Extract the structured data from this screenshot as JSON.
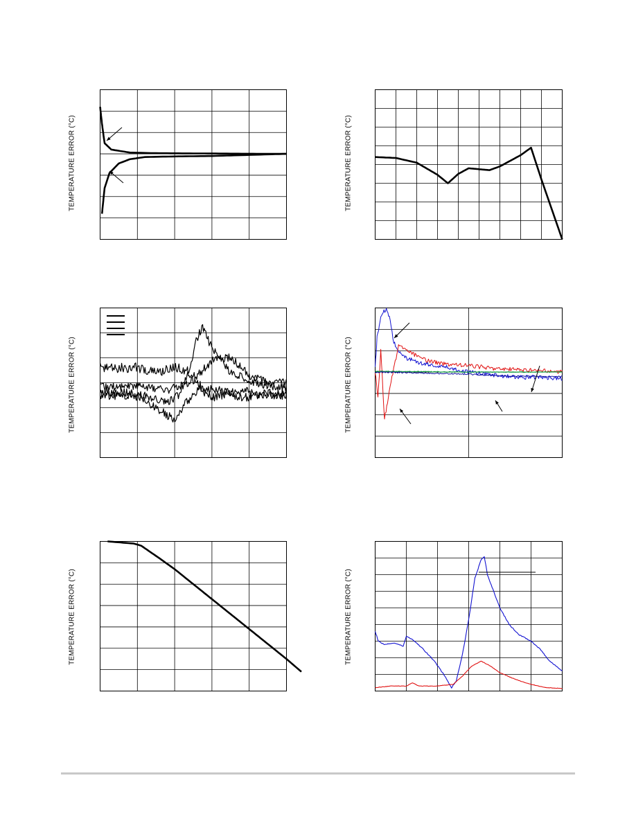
{
  "ylabel_text": "TEMPERATURE ERROR (°C)",
  "colors": {
    "black": "#000000",
    "blue": "#1010d0",
    "red": "#e01010",
    "green": "#10a040",
    "grid": "#000000"
  },
  "chart_data": [
    {
      "type": "line",
      "ylabel": "TEMPERATURE ERROR (°C)",
      "grid": true,
      "xlim": [
        0,
        5
      ],
      "ylim": [
        -4,
        3
      ],
      "x_divisions": 5,
      "y_divisions": 7,
      "series": [
        {
          "values": [
            [
              0,
              2.2
            ],
            [
              0.05,
              1.4
            ],
            [
              0.12,
              0.5
            ],
            [
              0.3,
              0.2
            ],
            [
              0.8,
              0.06
            ],
            [
              1.5,
              0.03
            ],
            [
              2.5,
              0.02
            ],
            [
              3.5,
              0.01
            ],
            [
              4.5,
              0.0
            ],
            [
              5,
              0.0
            ]
          ]
        },
        {
          "values": [
            [
              0.05,
              -2.8
            ],
            [
              0.12,
              -1.6
            ],
            [
              0.25,
              -0.9
            ],
            [
              0.5,
              -0.45
            ],
            [
              0.8,
              -0.25
            ],
            [
              1.2,
              -0.15
            ],
            [
              2,
              -0.12
            ],
            [
              3,
              -0.1
            ],
            [
              4,
              -0.05
            ],
            [
              5,
              0.0
            ]
          ]
        }
      ],
      "annotation_arrows": 2
    },
    {
      "type": "line",
      "ylabel": "TEMPERATURE ERROR (°C)",
      "grid": true,
      "xlim": [
        0,
        9
      ],
      "ylim": [
        -4,
        4
      ],
      "x_divisions": 9,
      "y_divisions": 8,
      "series": [
        {
          "values": [
            [
              0,
              0.4
            ],
            [
              1,
              0.35
            ],
            [
              2,
              0.1
            ],
            [
              3,
              -0.55
            ],
            [
              3.5,
              -1.0
            ],
            [
              4,
              -0.5
            ],
            [
              4.5,
              -0.2
            ],
            [
              5,
              -0.25
            ],
            [
              5.5,
              -0.3
            ],
            [
              6,
              -0.1
            ],
            [
              6.5,
              0.2
            ],
            [
              7,
              0.5
            ],
            [
              7.5,
              0.9
            ],
            [
              8,
              -0.8
            ],
            [
              8.5,
              -2.4
            ],
            [
              9,
              -4.0
            ]
          ]
        }
      ]
    },
    {
      "type": "line",
      "ylabel": "TEMPERATURE ERROR (°C)",
      "grid": true,
      "xlim": [
        0,
        5
      ],
      "ylim": [
        -3,
        3
      ],
      "x_divisions": 5,
      "y_divisions": 6,
      "legend_entries": 4,
      "series": [
        {
          "values": [
            [
              0,
              0.6
            ],
            [
              1,
              0.6
            ],
            [
              1.5,
              0.4
            ],
            [
              2,
              0.6
            ],
            [
              2.3,
              0.5
            ],
            [
              2.5,
              0.3
            ],
            [
              2.8,
              -0.4
            ],
            [
              3,
              -0.6
            ],
            [
              3.4,
              -0.4
            ],
            [
              3.8,
              -0.3
            ],
            [
              4.2,
              -0.5
            ],
            [
              4.6,
              -0.4
            ],
            [
              5,
              -0.4
            ]
          ]
        },
        {
          "values": [
            [
              0,
              -0.4
            ],
            [
              0.8,
              -0.4
            ],
            [
              1.4,
              -0.6
            ],
            [
              1.8,
              -0.8
            ],
            [
              2.1,
              -0.5
            ],
            [
              2.4,
              0.6
            ],
            [
              2.6,
              1.8
            ],
            [
              2.75,
              2.2
            ],
            [
              2.9,
              1.7
            ],
            [
              3.2,
              1.0
            ],
            [
              3.5,
              0.4
            ],
            [
              4,
              0.1
            ],
            [
              4.5,
              -0.1
            ],
            [
              5,
              -0.2
            ]
          ]
        },
        {
          "values": [
            [
              0,
              -0.2
            ],
            [
              1,
              -0.1
            ],
            [
              1.8,
              -0.3
            ],
            [
              2.2,
              -0.1
            ],
            [
              2.5,
              0.1
            ],
            [
              3.0,
              0.9
            ],
            [
              3.5,
              1.0
            ],
            [
              4,
              0.3
            ],
            [
              4.5,
              0.0
            ],
            [
              5,
              0.0
            ]
          ]
        },
        {
          "values": [
            [
              0,
              -0.5
            ],
            [
              1,
              -0.55
            ],
            [
              1.7,
              -1.2
            ],
            [
              2.0,
              -1.5
            ],
            [
              2.3,
              -0.8
            ],
            [
              2.7,
              -0.2
            ],
            [
              3.2,
              -0.3
            ],
            [
              3.8,
              -0.6
            ],
            [
              4.4,
              -0.5
            ],
            [
              5,
              -0.5
            ]
          ]
        }
      ]
    },
    {
      "type": "line",
      "ylabel": "TEMPERATURE ERROR (°C)",
      "grid": true,
      "xlim": [
        0,
        2
      ],
      "ylim": [
        -2,
        1.5
      ],
      "x_divisions": 2,
      "y_divisions": 7,
      "series": [
        {
          "name": "blue",
          "values": [
            [
              0,
              0.1
            ],
            [
              0.02,
              0.8
            ],
            [
              0.06,
              1.3
            ],
            [
              0.12,
              1.5
            ],
            [
              0.16,
              1.2
            ],
            [
              0.2,
              0.7
            ],
            [
              0.25,
              0.5
            ],
            [
              0.3,
              0.35
            ],
            [
              0.5,
              0.2
            ],
            [
              0.8,
              0.1
            ],
            [
              1,
              0.0
            ],
            [
              1.2,
              -0.05
            ],
            [
              1.4,
              -0.1
            ],
            [
              1.6,
              -0.12
            ],
            [
              1.8,
              -0.12
            ],
            [
              2,
              -0.15
            ]
          ]
        },
        {
          "name": "red",
          "values": [
            [
              0,
              0.0
            ],
            [
              0.03,
              -0.6
            ],
            [
              0.06,
              0.5
            ],
            [
              0.1,
              -1.1
            ],
            [
              0.14,
              -0.6
            ],
            [
              0.18,
              -0.1
            ],
            [
              0.25,
              0.6
            ],
            [
              0.35,
              0.5
            ],
            [
              0.5,
              0.3
            ],
            [
              0.7,
              0.2
            ],
            [
              1,
              0.15
            ],
            [
              1.3,
              0.08
            ],
            [
              1.6,
              0.05
            ],
            [
              2,
              0.0
            ]
          ]
        },
        {
          "name": "green",
          "values": [
            [
              0,
              0.02
            ],
            [
              0.5,
              0.01
            ],
            [
              1,
              0.0
            ],
            [
              1.5,
              0.0
            ],
            [
              2,
              0.0
            ]
          ]
        },
        {
          "name": "navy",
          "values": [
            [
              0,
              0.0
            ],
            [
              0.5,
              -0.02
            ],
            [
              1,
              -0.05
            ],
            [
              1.3,
              -0.08
            ],
            [
              1.6,
              -0.1
            ],
            [
              2,
              -0.1
            ]
          ]
        }
      ],
      "annotation_arrows": 4
    },
    {
      "type": "line",
      "ylabel": "TEMPERATURE ERROR (°C)",
      "grid": true,
      "xlim": [
        0,
        5
      ],
      "ylim": [
        -7,
        0
      ],
      "x_divisions": 5,
      "y_divisions": 7,
      "series": [
        {
          "values": [
            [
              0.2,
              0
            ],
            [
              0.9,
              -0.1
            ],
            [
              1.1,
              -0.2
            ],
            [
              1.6,
              -0.8
            ],
            [
              2.0,
              -1.3
            ],
            [
              2.5,
              -2.0
            ],
            [
              3.0,
              -2.7
            ],
            [
              3.5,
              -3.4
            ],
            [
              4.0,
              -4.1
            ],
            [
              4.5,
              -4.8
            ],
            [
              5.0,
              -5.5
            ],
            [
              5.4,
              -6.1
            ]
          ]
        }
      ]
    },
    {
      "type": "line",
      "ylabel": "TEMPERATURE ERROR (°C)",
      "grid": true,
      "xlim": [
        0,
        6
      ],
      "ylim": [
        0,
        9
      ],
      "x_divisions": 6,
      "y_divisions": 9,
      "series": [
        {
          "name": "blue",
          "values": [
            [
              0,
              3.6
            ],
            [
              0.1,
              3.0
            ],
            [
              0.3,
              2.8
            ],
            [
              0.6,
              2.9
            ],
            [
              0.9,
              2.7
            ],
            [
              1.0,
              3.3
            ],
            [
              1.2,
              3.1
            ],
            [
              1.5,
              2.6
            ],
            [
              1.9,
              1.8
            ],
            [
              2.2,
              1.0
            ],
            [
              2.45,
              0.2
            ],
            [
              2.6,
              0.6
            ],
            [
              2.8,
              2.2
            ],
            [
              3.0,
              4.3
            ],
            [
              3.2,
              6.8
            ],
            [
              3.4,
              7.9
            ],
            [
              3.5,
              8.1
            ],
            [
              3.6,
              7.0
            ],
            [
              3.8,
              6.0
            ],
            [
              4.0,
              5.0
            ],
            [
              4.3,
              4.0
            ],
            [
              4.6,
              3.4
            ],
            [
              5.0,
              3.0
            ],
            [
              5.3,
              2.5
            ],
            [
              5.6,
              1.8
            ],
            [
              6,
              1.2
            ]
          ]
        },
        {
          "name": "red",
          "values": [
            [
              0,
              0.2
            ],
            [
              0.5,
              0.3
            ],
            [
              1.0,
              0.3
            ],
            [
              1.2,
              0.5
            ],
            [
              1.4,
              0.3
            ],
            [
              2.0,
              0.3
            ],
            [
              2.5,
              0.4
            ],
            [
              2.8,
              0.9
            ],
            [
              3.1,
              1.5
            ],
            [
              3.4,
              1.8
            ],
            [
              3.7,
              1.5
            ],
            [
              4.0,
              1.1
            ],
            [
              4.5,
              0.7
            ],
            [
              5.0,
              0.4
            ],
            [
              5.5,
              0.2
            ],
            [
              6,
              0.15
            ]
          ]
        }
      ],
      "annotation_lines": 1
    }
  ]
}
